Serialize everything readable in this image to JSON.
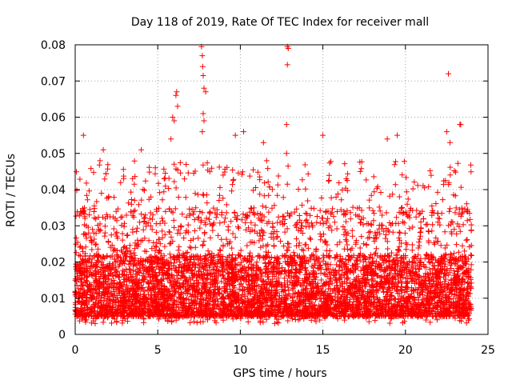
{
  "chart_data": {
    "type": "scatter",
    "title": "Day 118 of 2019, Rate Of TEC Index for receiver mall",
    "xlabel": "GPS time / hours",
    "ylabel": "ROTI / TECUs",
    "xlim": [
      0,
      25
    ],
    "ylim": [
      0,
      0.08
    ],
    "xticks": [
      0,
      5,
      10,
      15,
      20,
      25
    ],
    "xtick_labels": [
      "0",
      "5",
      "10",
      "15",
      "20",
      "25"
    ],
    "yticks": [
      0,
      0.01,
      0.02,
      0.03,
      0.04,
      0.05,
      0.06,
      0.07,
      0.08
    ],
    "ytick_labels": [
      "0",
      "0.01",
      "0.02",
      "0.03",
      "0.04",
      "0.05",
      "0.06",
      "0.07",
      "0.08"
    ],
    "grid": true,
    "marker": "plus",
    "color": "#ff0000",
    "series": [
      {
        "name": "ROTI",
        "x_range": [
          0,
          24
        ],
        "point_count": 6000,
        "typical_range": [
          0.003,
          0.03
        ],
        "highlights": [
          {
            "x": 5.8,
            "y": 0.054
          },
          {
            "x": 5.9,
            "y": 0.06
          },
          {
            "x": 6.0,
            "y": 0.059
          },
          {
            "x": 6.1,
            "y": 0.066
          },
          {
            "x": 6.15,
            "y": 0.067
          },
          {
            "x": 6.2,
            "y": 0.063
          },
          {
            "x": 7.65,
            "y": 0.0795
          },
          {
            "x": 7.7,
            "y": 0.077
          },
          {
            "x": 7.72,
            "y": 0.074
          },
          {
            "x": 7.75,
            "y": 0.0715
          },
          {
            "x": 7.8,
            "y": 0.068
          },
          {
            "x": 7.9,
            "y": 0.067
          },
          {
            "x": 7.75,
            "y": 0.061
          },
          {
            "x": 7.7,
            "y": 0.056
          },
          {
            "x": 7.8,
            "y": 0.059
          },
          {
            "x": 12.85,
            "y": 0.0795
          },
          {
            "x": 12.9,
            "y": 0.079
          },
          {
            "x": 12.85,
            "y": 0.0745
          },
          {
            "x": 12.8,
            "y": 0.058
          },
          {
            "x": 12.8,
            "y": 0.05
          },
          {
            "x": 22.6,
            "y": 0.072
          },
          {
            "x": 23.3,
            "y": 0.058
          },
          {
            "x": 23.35,
            "y": 0.058
          },
          {
            "x": 22.5,
            "y": 0.056
          },
          {
            "x": 22.7,
            "y": 0.053
          },
          {
            "x": 0.5,
            "y": 0.055
          },
          {
            "x": 1.7,
            "y": 0.051
          },
          {
            "x": 4.0,
            "y": 0.051
          },
          {
            "x": 9.7,
            "y": 0.055
          },
          {
            "x": 10.2,
            "y": 0.056
          },
          {
            "x": 11.4,
            "y": 0.053
          },
          {
            "x": 15.0,
            "y": 0.055
          },
          {
            "x": 19.5,
            "y": 0.055
          },
          {
            "x": 18.9,
            "y": 0.054
          }
        ]
      }
    ]
  }
}
